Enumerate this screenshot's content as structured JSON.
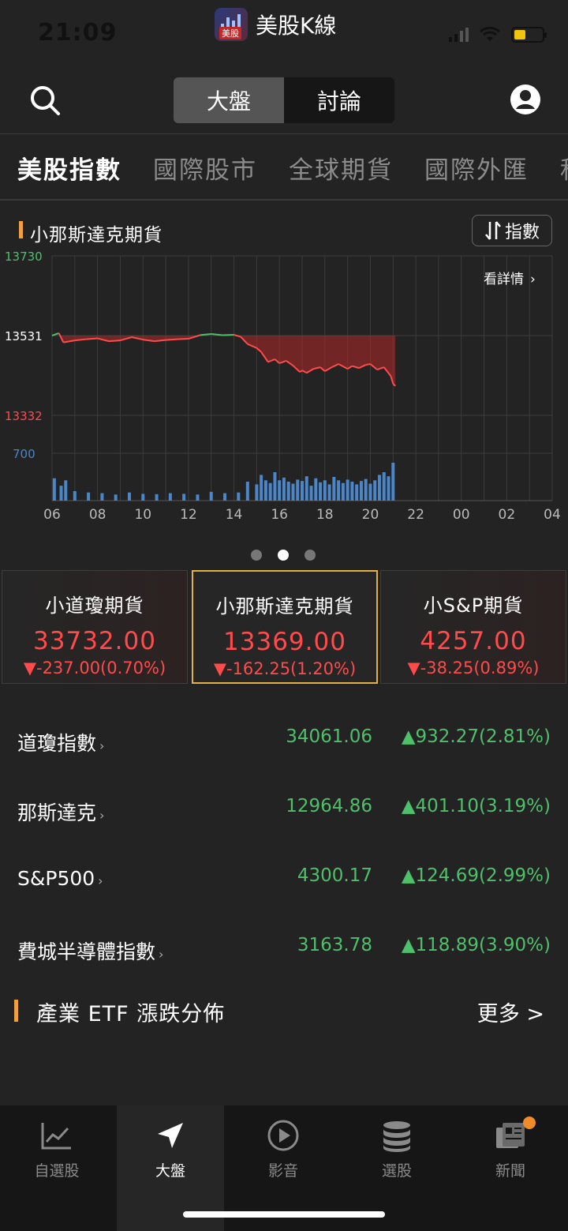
{
  "status": {
    "time": "21:09"
  },
  "app": {
    "title": "美股K線",
    "logo_text": "美股"
  },
  "segment": {
    "tabs": [
      "大盤",
      "討論"
    ],
    "active": 0
  },
  "categories": [
    "美股指數",
    "國際股市",
    "全球期貨",
    "國際外匯",
    "科"
  ],
  "chart_section": {
    "title": "小那斯達克期貨",
    "toggle_label": "指數",
    "detail_link": "看詳情"
  },
  "chart_data": {
    "type": "line",
    "title": "小那斯達克期貨",
    "ylim": [
      13332,
      13730
    ],
    "y_ticks": [
      "13730",
      "13531",
      "13332"
    ],
    "reference_line": 13531,
    "x_ticks": [
      "06",
      "08",
      "10",
      "12",
      "14",
      "16",
      "18",
      "20",
      "22",
      "00",
      "02",
      "04"
    ],
    "x_range": [
      6,
      28
    ],
    "series": [
      {
        "x": [
          6.0,
          6.3,
          6.5,
          7.0,
          7.5,
          8.0,
          8.5,
          9.0,
          9.5,
          10.0,
          10.5,
          11.0,
          11.5,
          12.0,
          12.5,
          13.0,
          13.5,
          14.0,
          14.3,
          14.6,
          15.0,
          15.2,
          15.5,
          15.8,
          16.0,
          16.3,
          16.6,
          16.9,
          17.0,
          17.2,
          17.5,
          17.8,
          18.0,
          18.3,
          18.6,
          19.0,
          19.2,
          19.5,
          19.8,
          20.0,
          20.3,
          20.6,
          20.9,
          21.0,
          21.1
        ],
        "values": [
          13531,
          13537,
          13514,
          13519,
          13522,
          13524,
          13517,
          13519,
          13527,
          13521,
          13517,
          13520,
          13522,
          13523,
          13532,
          13535,
          13532,
          13533,
          13528,
          13510,
          13500,
          13490,
          13465,
          13472,
          13462,
          13468,
          13456,
          13440,
          13444,
          13438,
          13448,
          13452,
          13442,
          13452,
          13460,
          13448,
          13455,
          13450,
          13458,
          13460,
          13446,
          13452,
          13430,
          13411,
          13405
        ]
      }
    ],
    "volume": {
      "label": "700",
      "x": [
        6.1,
        6.4,
        6.6,
        7.0,
        7.6,
        8.2,
        8.8,
        9.4,
        10.0,
        10.6,
        11.2,
        11.8,
        12.4,
        13.0,
        13.6,
        14.2,
        14.6,
        15.0,
        15.2,
        15.4,
        15.6,
        15.8,
        16.0,
        16.2,
        16.4,
        16.6,
        16.8,
        17.0,
        17.2,
        17.4,
        17.6,
        17.8,
        18.0,
        18.2,
        18.4,
        18.6,
        18.8,
        19.0,
        19.2,
        19.4,
        19.6,
        19.8,
        20.0,
        20.2,
        20.4,
        20.6,
        20.8,
        21.0
      ],
      "values": [
        330,
        220,
        300,
        140,
        120,
        110,
        90,
        120,
        100,
        95,
        110,
        100,
        90,
        130,
        110,
        120,
        280,
        240,
        380,
        300,
        260,
        420,
        300,
        340,
        280,
        250,
        310,
        290,
        360,
        220,
        330,
        270,
        300,
        240,
        350,
        300,
        260,
        310,
        280,
        240,
        290,
        320,
        250,
        300,
        380,
        420,
        360,
        560
      ]
    }
  },
  "pager": {
    "count": 3,
    "active": 1
  },
  "futures": [
    {
      "name": "小道瓊期貨",
      "price": "33732.00",
      "change": "▼-237.00(0.70%)"
    },
    {
      "name": "小那斯達克期貨",
      "price": "13369.00",
      "change": "▼-162.25(1.20%)"
    },
    {
      "name": "小S&P期貨",
      "price": "4257.00",
      "change": "▼-38.25(0.89%)"
    }
  ],
  "indices": [
    {
      "name": "道瓊指數",
      "value": "34061.06",
      "change": "▲932.27(2.81%)"
    },
    {
      "name": "那斯達克",
      "value": "12964.86",
      "change": "▲401.10(3.19%)"
    },
    {
      "name": "S&P500",
      "value": "4300.17",
      "change": "▲124.69(2.99%)"
    },
    {
      "name": "費城半導體指數",
      "value": "3163.78",
      "change": "▲118.89(3.90%)"
    }
  ],
  "etf": {
    "title": "產業 ETF 漲跌分佈",
    "more": "更多 >"
  },
  "tabbar": [
    {
      "label": "自選股",
      "icon": "chart-line-icon"
    },
    {
      "label": "大盤",
      "icon": "navigation-arrow-icon"
    },
    {
      "label": "影音",
      "icon": "play-circle-icon"
    },
    {
      "label": "選股",
      "icon": "database-stack-icon"
    },
    {
      "label": "新聞",
      "icon": "newspaper-icon"
    }
  ],
  "colors": {
    "up": "#4fc06a",
    "down": "#ff4b4b",
    "accent": "#f0a040",
    "card_selected": "#e2b04b",
    "volume": "#4a86c8"
  }
}
